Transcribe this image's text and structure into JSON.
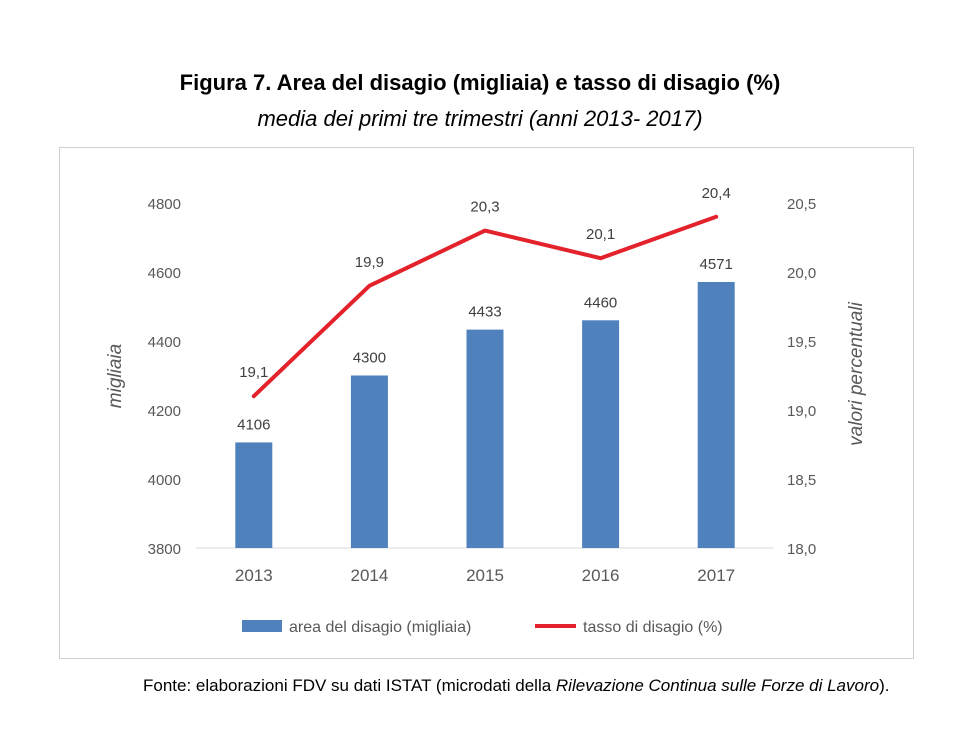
{
  "title": "Figura 7. Area del disagio (migliaia) e tasso di disagio (%)",
  "subtitle": "media dei primi tre trimestri (anni 2013- 2017)",
  "source": {
    "prefix": "Fonte: elaborazioni FDV su dati  ISTAT (microdati della ",
    "italic": "Rilevazione Continua sulle Forze di Lavoro",
    "suffix": ")."
  },
  "colors": {
    "bar": "#4f81bd",
    "line": "#e3222b",
    "grid": "#d9d9d9",
    "axis_text": "#595959"
  },
  "chart_data": {
    "type": "bar",
    "categories": [
      "2013",
      "2014",
      "2015",
      "2016",
      "2017"
    ],
    "series": [
      {
        "name": "area del disagio (migliaia)",
        "type": "bar",
        "axis": "left",
        "values": [
          4106,
          4300,
          4433,
          4460,
          4571
        ],
        "labels": [
          "4106",
          "4300",
          "4433",
          "4460",
          "4571"
        ]
      },
      {
        "name": "tasso di disagio (%)",
        "type": "line",
        "axis": "right",
        "values": [
          19.1,
          19.9,
          20.3,
          20.1,
          20.4
        ],
        "labels": [
          "19,1",
          "19,9",
          "20,3",
          "20,1",
          "20,4"
        ]
      }
    ],
    "left_axis": {
      "label": "migliaia",
      "range": [
        3800,
        4800
      ],
      "ticks": [
        "3800",
        "4000",
        "4200",
        "4400",
        "4600",
        "4800"
      ]
    },
    "right_axis": {
      "label": "valori percentuali",
      "range": [
        18.0,
        20.5
      ],
      "ticks": [
        "18,0",
        "18,5",
        "19,0",
        "19,5",
        "20,0",
        "20,5"
      ]
    },
    "grid": false,
    "legend_position": "bottom"
  }
}
